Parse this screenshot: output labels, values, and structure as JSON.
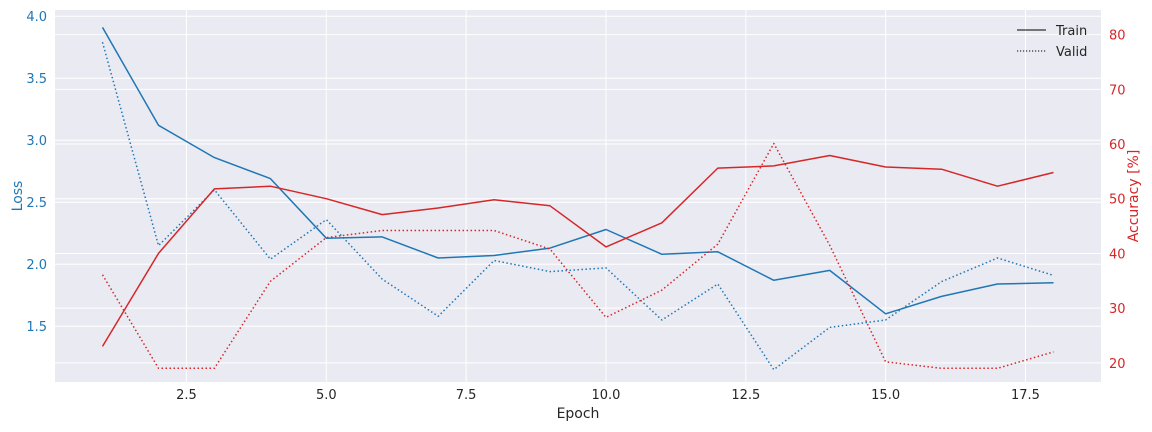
{
  "chart_data": {
    "type": "line",
    "xlabel": "Epoch",
    "ylabel_left": "Loss",
    "ylabel_right": "Accuracy [%]",
    "x": [
      1,
      2,
      3,
      4,
      5,
      6,
      7,
      8,
      9,
      10,
      11,
      12,
      13,
      14,
      15,
      16,
      17,
      18
    ],
    "xlim": [
      0.15,
      18.85
    ],
    "ylim_left": [
      1.05,
      4.05
    ],
    "ylim_right": [
      16.5,
      84.5
    ],
    "x_ticks": [
      2.5,
      5.0,
      7.5,
      10.0,
      12.5,
      15.0,
      17.5
    ],
    "x_tick_labels": [
      "2.5",
      "5.0",
      "7.5",
      "10.0",
      "12.5",
      "15.0",
      "17.5"
    ],
    "y_left_ticks": [
      1.5,
      2.0,
      2.5,
      3.0,
      3.5,
      4.0
    ],
    "y_left_tick_labels": [
      "1.5",
      "2.0",
      "2.5",
      "3.0",
      "3.5",
      "4.0"
    ],
    "y_right_ticks": [
      20,
      30,
      40,
      50,
      60,
      70,
      80
    ],
    "y_right_tick_labels": [
      "20",
      "30",
      "40",
      "50",
      "60",
      "70",
      "80"
    ],
    "grid": true,
    "legend_placement": "top-right",
    "legend": [
      {
        "label": "Train",
        "style": "solid"
      },
      {
        "label": "Valid",
        "style": "dotted"
      }
    ],
    "series": [
      {
        "metric": "loss",
        "split": "train",
        "axis": "left",
        "style": "solid",
        "color": "#1f77b4",
        "values": [
          3.91,
          3.12,
          2.86,
          2.69,
          2.21,
          2.22,
          2.05,
          2.07,
          2.13,
          2.28,
          2.08,
          2.1,
          1.87,
          1.95,
          1.6,
          1.74,
          1.84,
          1.85
        ]
      },
      {
        "metric": "loss",
        "split": "valid",
        "axis": "left",
        "style": "dotted",
        "color": "#1f77b4",
        "values": [
          3.79,
          2.15,
          2.6,
          2.04,
          2.36,
          1.88,
          1.58,
          2.03,
          1.94,
          1.97,
          1.55,
          1.84,
          1.15,
          1.49,
          1.55,
          1.86,
          2.05,
          1.91
        ]
      },
      {
        "metric": "accuracy",
        "split": "train",
        "axis": "right",
        "style": "solid",
        "color": "#d62728",
        "values": [
          23.0,
          40.0,
          51.8,
          52.3,
          50.0,
          47.1,
          48.3,
          49.8,
          48.7,
          41.2,
          45.6,
          55.6,
          56.0,
          57.9,
          55.8,
          55.4,
          52.3,
          54.8
        ]
      },
      {
        "metric": "accuracy",
        "split": "valid",
        "axis": "right",
        "style": "dotted",
        "color": "#d62728",
        "values": [
          36.1,
          19.0,
          19.0,
          34.9,
          42.9,
          44.2,
          44.2,
          44.2,
          40.8,
          28.3,
          33.3,
          41.7,
          60.1,
          41.5,
          20.2,
          19.0,
          19.0,
          22.0
        ]
      }
    ],
    "colors": {
      "background": "#eaeaf2",
      "grid": "#ffffff",
      "loss": "#1f77b4",
      "accuracy": "#d62728",
      "text": "#262626"
    }
  }
}
